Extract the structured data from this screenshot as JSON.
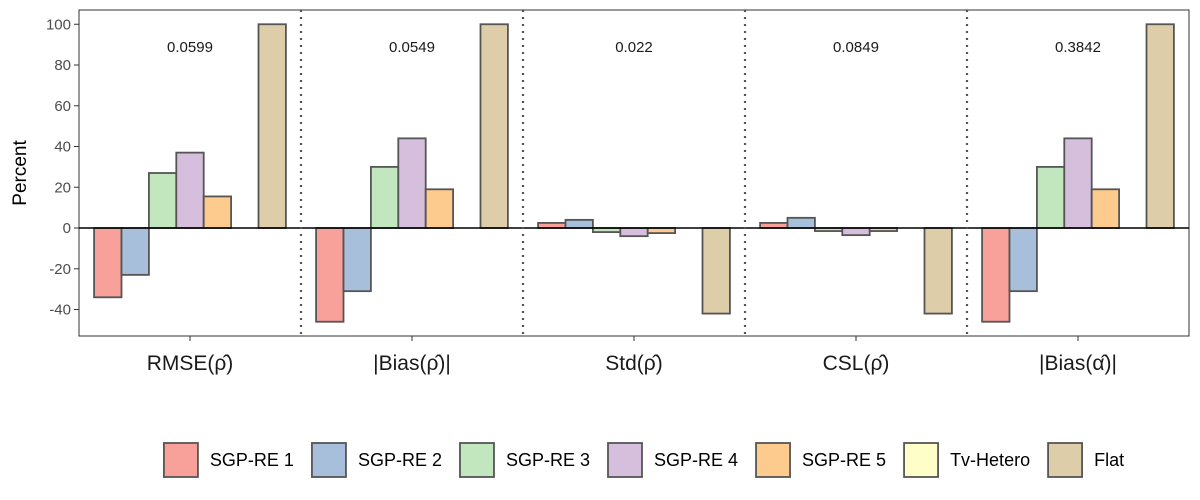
{
  "chart_data": {
    "type": "bar",
    "ylabel": "Percent",
    "xlabel": "",
    "ylim": [
      -53,
      107
    ],
    "yticks": [
      -40,
      -20,
      0,
      20,
      40,
      60,
      80,
      100
    ],
    "ytick_labels": [
      "-40",
      "-20",
      "0",
      "20",
      "40",
      "60",
      "80",
      "100"
    ],
    "categories": [
      "RMSE(ρ̂)",
      "|Bias(ρ̂)|",
      "Std(ρ̂)",
      "CSL(ρ̂)",
      "|Bias(α̂)|"
    ],
    "annotations": [
      "0.0599",
      "0.0549",
      "0.022",
      "0.0849",
      "0.3842"
    ],
    "series": [
      {
        "name": "SGP-RE 1",
        "color": "#f8a19a",
        "values": [
          -34,
          -46,
          2.5,
          2.5,
          -46
        ]
      },
      {
        "name": "SGP-RE 2",
        "color": "#a7bfdb",
        "values": [
          -23,
          -31,
          4,
          5,
          -31
        ]
      },
      {
        "name": "SGP-RE 3",
        "color": "#c2e6bd",
        "values": [
          27,
          30,
          -2,
          -1.5,
          30
        ]
      },
      {
        "name": "SGP-RE 4",
        "color": "#d5bfdd",
        "values": [
          37,
          44,
          -4,
          -3.5,
          44
        ]
      },
      {
        "name": "SGP-RE 5",
        "color": "#fdcb8e",
        "values": [
          15.5,
          19,
          -2.5,
          -1.5,
          19
        ]
      },
      {
        "name": "Tv-Hetero",
        "color": "#fefec8",
        "values": [
          0,
          0,
          0,
          0,
          0
        ]
      },
      {
        "name": "Flat",
        "color": "#ddcea9",
        "values": [
          100,
          100,
          -42,
          -42,
          100
        ]
      }
    ],
    "legend": "bottom",
    "grid": false
  }
}
